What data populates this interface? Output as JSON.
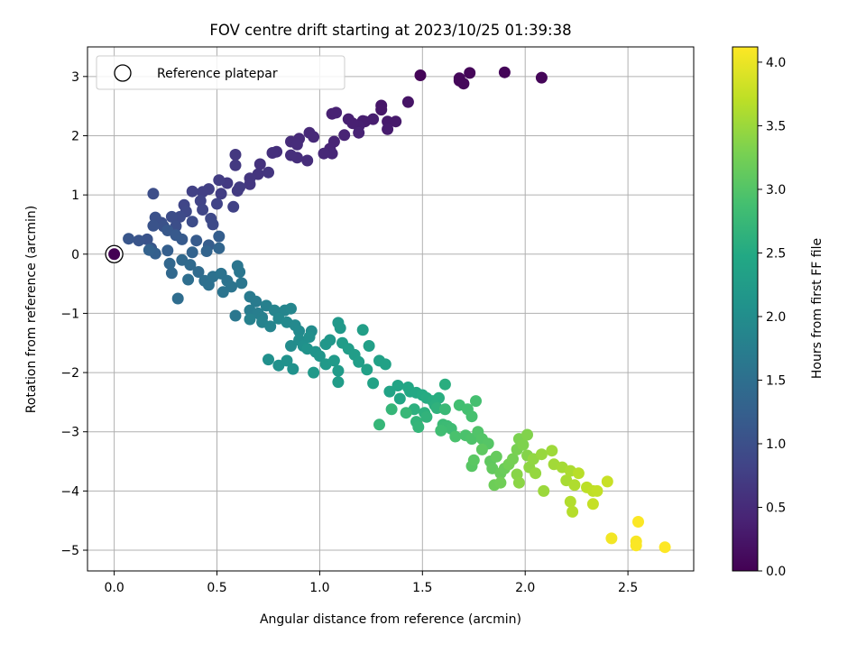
{
  "chart_data": {
    "type": "scatter",
    "title": "FOV centre drift starting at 2023/10/25 01:39:38",
    "xlabel": "Angular distance from reference (arcmin)",
    "ylabel": "Rotation from reference (arcmin)",
    "xlim": [
      -0.13,
      2.82
    ],
    "ylim": [
      -5.35,
      3.5
    ],
    "xticks": [
      0.0,
      0.5,
      1.0,
      1.5,
      2.0,
      2.5
    ],
    "xtick_labels": [
      "0.0",
      "0.5",
      "1.0",
      "1.5",
      "2.0",
      "2.5"
    ],
    "yticks": [
      3,
      2,
      1,
      0,
      -1,
      -2,
      -3,
      -4,
      -5
    ],
    "ytick_labels": [
      "3",
      "2",
      "1",
      "0",
      "−1",
      "−2",
      "−3",
      "−4",
      "−5"
    ],
    "grid": true,
    "legend": {
      "placement": "upper-left",
      "entries": [
        "Reference platepar"
      ]
    },
    "reference_point": {
      "x": 0.0,
      "y": 0.0
    },
    "colorbar": {
      "label": "Hours from first FF file",
      "colormap": "viridis",
      "range": [
        0.0,
        4.12
      ],
      "ticks": [
        0.0,
        0.5,
        1.0,
        1.5,
        2.0,
        2.5,
        3.0,
        3.5,
        4.0
      ],
      "tick_labels": [
        "0.0",
        "0.5",
        "1.0",
        "1.5",
        "2.0",
        "2.5",
        "3.0",
        "3.5",
        "4.0"
      ]
    },
    "series": [
      {
        "points": [
          [
            1.49,
            3.02,
            0.05
          ],
          [
            1.73,
            3.06,
            0.06
          ],
          [
            1.9,
            3.07,
            0.05
          ],
          [
            2.08,
            2.98,
            0.06
          ],
          [
            1.68,
            2.93,
            0.07
          ],
          [
            1.68,
            2.97,
            0.08
          ],
          [
            1.7,
            2.88,
            0.08
          ],
          [
            1.43,
            2.57,
            0.22
          ],
          [
            1.3,
            2.51,
            0.25
          ],
          [
            1.3,
            2.44,
            0.26
          ],
          [
            1.33,
            2.24,
            0.3
          ],
          [
            1.37,
            2.24,
            0.29
          ],
          [
            1.33,
            2.11,
            0.32
          ],
          [
            1.22,
            2.24,
            0.33
          ],
          [
            1.21,
            2.25,
            0.34
          ],
          [
            1.26,
            2.28,
            0.34
          ],
          [
            1.14,
            2.28,
            0.36
          ],
          [
            1.19,
            2.16,
            0.36
          ],
          [
            1.16,
            2.21,
            0.37
          ],
          [
            1.06,
            2.37,
            0.38
          ],
          [
            1.08,
            2.39,
            0.39
          ],
          [
            1.19,
            2.05,
            0.4
          ],
          [
            1.12,
            2.01,
            0.41
          ],
          [
            1.07,
            1.9,
            0.42
          ],
          [
            1.05,
            1.78,
            0.43
          ],
          [
            1.06,
            1.7,
            0.45
          ],
          [
            1.02,
            1.7,
            0.46
          ],
          [
            0.95,
            2.05,
            0.48
          ],
          [
            0.97,
            1.98,
            0.49
          ],
          [
            0.9,
            1.95,
            0.5
          ],
          [
            0.86,
            1.9,
            0.51
          ],
          [
            0.89,
            1.85,
            0.52
          ],
          [
            0.94,
            1.58,
            0.53
          ],
          [
            0.89,
            1.63,
            0.54
          ],
          [
            0.86,
            1.67,
            0.55
          ],
          [
            0.79,
            1.73,
            0.56
          ],
          [
            0.77,
            1.71,
            0.57
          ],
          [
            0.71,
            1.52,
            0.6
          ],
          [
            0.7,
            1.35,
            0.62
          ],
          [
            0.75,
            1.38,
            0.63
          ],
          [
            0.66,
            1.28,
            0.65
          ],
          [
            0.66,
            1.18,
            0.66
          ],
          [
            0.59,
            1.68,
            0.67
          ],
          [
            0.59,
            1.5,
            0.68
          ],
          [
            0.55,
            1.2,
            0.7
          ],
          [
            0.6,
            1.07,
            0.71
          ],
          [
            0.61,
            1.13,
            0.72
          ],
          [
            0.51,
            1.25,
            0.73
          ],
          [
            0.52,
            1.02,
            0.74
          ],
          [
            0.46,
            1.1,
            0.76
          ],
          [
            0.43,
            1.05,
            0.77
          ],
          [
            0.38,
            1.06,
            0.78
          ],
          [
            0.58,
            0.8,
            0.8
          ],
          [
            0.5,
            0.85,
            0.82
          ],
          [
            0.42,
            0.9,
            0.83
          ],
          [
            0.43,
            0.75,
            0.85
          ],
          [
            0.34,
            0.83,
            0.86
          ],
          [
            0.35,
            0.72,
            0.88
          ],
          [
            0.47,
            0.6,
            0.9
          ],
          [
            0.48,
            0.5,
            0.92
          ],
          [
            0.32,
            0.63,
            0.93
          ],
          [
            0.38,
            0.55,
            0.95
          ],
          [
            0.28,
            0.63,
            0.96
          ],
          [
            0.19,
            1.02,
            0.97
          ],
          [
            0.3,
            0.47,
            0.98
          ],
          [
            0.23,
            0.53,
            1.0
          ],
          [
            0.2,
            0.62,
            1.02
          ],
          [
            0.24,
            0.47,
            1.03
          ],
          [
            0.19,
            0.48,
            1.05
          ],
          [
            0.16,
            0.25,
            1.06
          ],
          [
            0.12,
            0.23,
            1.08
          ],
          [
            0.07,
            0.26,
            1.1
          ],
          [
            0.18,
            0.1,
            1.11
          ],
          [
            0.26,
            0.4,
            1.13
          ],
          [
            0.3,
            0.32,
            1.14
          ],
          [
            0.33,
            0.25,
            1.16
          ],
          [
            0.4,
            0.23,
            1.18
          ],
          [
            0.46,
            0.15,
            1.2
          ],
          [
            0.51,
            0.3,
            1.22
          ],
          [
            0.26,
            0.06,
            1.24
          ],
          [
            0.2,
            0.01,
            1.26
          ],
          [
            0.17,
            0.07,
            1.28
          ],
          [
            0.38,
            0.03,
            1.3
          ],
          [
            0.45,
            0.05,
            1.32
          ],
          [
            0.51,
            0.1,
            1.34
          ],
          [
            0.27,
            -0.16,
            1.36
          ],
          [
            0.28,
            -0.32,
            1.38
          ],
          [
            0.33,
            -0.1,
            1.4
          ],
          [
            0.37,
            -0.18,
            1.42
          ],
          [
            0.41,
            -0.3,
            1.44
          ],
          [
            0.31,
            -0.75,
            1.46
          ],
          [
            0.36,
            -0.43,
            1.48
          ],
          [
            0.44,
            -0.45,
            1.5
          ],
          [
            0.46,
            -0.52,
            1.52
          ],
          [
            0.48,
            -0.38,
            1.54
          ],
          [
            0.52,
            -0.33,
            1.56
          ],
          [
            0.55,
            -0.45,
            1.57
          ],
          [
            0.53,
            -0.64,
            1.58
          ],
          [
            0.57,
            -0.55,
            1.59
          ],
          [
            0.6,
            -0.2,
            1.6
          ],
          [
            0.61,
            -0.3,
            1.61
          ],
          [
            0.62,
            -0.49,
            1.62
          ],
          [
            0.59,
            -1.04,
            1.63
          ],
          [
            0.66,
            -0.72,
            1.68
          ],
          [
            0.69,
            -0.8,
            1.7
          ],
          [
            0.66,
            -0.95,
            1.72
          ],
          [
            0.7,
            -1.0,
            1.74
          ],
          [
            0.72,
            -1.07,
            1.76
          ],
          [
            0.74,
            -0.87,
            1.78
          ],
          [
            0.66,
            -1.1,
            1.8
          ],
          [
            0.72,
            -1.15,
            1.82
          ],
          [
            0.76,
            -1.22,
            1.84
          ],
          [
            0.78,
            -0.95,
            1.85
          ],
          [
            0.83,
            -0.95,
            1.86
          ],
          [
            0.86,
            -0.92,
            1.88
          ],
          [
            0.8,
            -1.09,
            1.9
          ],
          [
            0.84,
            -1.15,
            1.92
          ],
          [
            0.88,
            -1.2,
            1.93
          ],
          [
            0.9,
            -1.3,
            1.95
          ],
          [
            0.96,
            -1.3,
            1.97
          ],
          [
            0.86,
            -1.55,
            1.98
          ],
          [
            0.9,
            -1.45,
            2.0
          ],
          [
            0.95,
            -1.4,
            2.02
          ],
          [
            0.92,
            -1.55,
            2.04
          ],
          [
            0.75,
            -1.78,
            2.05
          ],
          [
            0.8,
            -1.88,
            2.06
          ],
          [
            0.84,
            -1.8,
            2.07
          ],
          [
            0.87,
            -1.94,
            2.08
          ],
          [
            0.94,
            -1.6,
            2.1
          ],
          [
            0.98,
            -1.65,
            2.12
          ],
          [
            1.0,
            -1.72,
            2.14
          ],
          [
            1.03,
            -1.52,
            2.16
          ],
          [
            1.05,
            -1.45,
            2.17
          ],
          [
            1.09,
            -1.16,
            2.18
          ],
          [
            1.1,
            -1.25,
            2.19
          ],
          [
            0.97,
            -2.0,
            2.2
          ],
          [
            1.03,
            -1.86,
            2.21
          ],
          [
            1.07,
            -1.8,
            2.22
          ],
          [
            1.09,
            -1.97,
            2.24
          ],
          [
            1.09,
            -2.16,
            2.25
          ],
          [
            1.11,
            -1.5,
            2.26
          ],
          [
            1.14,
            -1.6,
            2.27
          ],
          [
            1.17,
            -1.7,
            2.28
          ],
          [
            1.19,
            -1.82,
            2.29
          ],
          [
            1.21,
            -1.28,
            2.3
          ],
          [
            1.24,
            -1.55,
            2.31
          ],
          [
            1.23,
            -1.95,
            2.32
          ],
          [
            1.29,
            -1.8,
            2.34
          ],
          [
            1.32,
            -1.86,
            2.35
          ],
          [
            1.26,
            -2.18,
            2.36
          ],
          [
            1.34,
            -2.32,
            2.38
          ],
          [
            1.38,
            -2.22,
            2.4
          ],
          [
            1.39,
            -2.44,
            2.42
          ],
          [
            1.43,
            -2.25,
            2.44
          ],
          [
            1.44,
            -2.32,
            2.46
          ],
          [
            1.47,
            -2.34,
            2.48
          ],
          [
            1.5,
            -2.38,
            2.5
          ],
          [
            1.52,
            -2.43,
            2.52
          ],
          [
            1.55,
            -2.48,
            2.54
          ],
          [
            1.58,
            -2.43,
            2.56
          ],
          [
            1.61,
            -2.2,
            2.57
          ],
          [
            1.56,
            -2.55,
            2.58
          ],
          [
            1.46,
            -2.62,
            2.6
          ],
          [
            1.51,
            -2.68,
            2.62
          ],
          [
            1.57,
            -2.6,
            2.64
          ],
          [
            1.52,
            -2.75,
            2.66
          ],
          [
            1.47,
            -2.83,
            2.68
          ],
          [
            1.48,
            -2.92,
            2.7
          ],
          [
            1.35,
            -2.62,
            2.71
          ],
          [
            1.29,
            -2.88,
            2.72
          ],
          [
            1.42,
            -2.68,
            2.74
          ],
          [
            1.61,
            -2.62,
            2.76
          ],
          [
            1.6,
            -2.88,
            2.78
          ],
          [
            1.62,
            -2.9,
            2.8
          ],
          [
            1.64,
            -2.95,
            2.82
          ],
          [
            1.59,
            -2.98,
            2.84
          ],
          [
            1.68,
            -2.55,
            2.86
          ],
          [
            1.72,
            -2.62,
            2.88
          ],
          [
            1.76,
            -2.48,
            2.89
          ],
          [
            1.74,
            -2.74,
            2.9
          ],
          [
            1.66,
            -3.08,
            2.92
          ],
          [
            1.71,
            -3.06,
            2.94
          ],
          [
            1.74,
            -3.12,
            2.96
          ],
          [
            1.77,
            -3.0,
            2.98
          ],
          [
            1.79,
            -3.12,
            3.0
          ],
          [
            1.82,
            -3.2,
            3.02
          ],
          [
            1.74,
            -3.58,
            3.04
          ],
          [
            1.75,
            -3.48,
            3.06
          ],
          [
            1.79,
            -3.3,
            3.08
          ],
          [
            1.83,
            -3.5,
            3.1
          ],
          [
            1.84,
            -3.62,
            3.12
          ],
          [
            1.86,
            -3.42,
            3.14
          ],
          [
            1.88,
            -3.7,
            3.16
          ],
          [
            1.9,
            -3.62,
            3.18
          ],
          [
            1.85,
            -3.9,
            3.2
          ],
          [
            1.88,
            -3.86,
            3.22
          ],
          [
            1.92,
            -3.55,
            3.24
          ],
          [
            1.94,
            -3.46,
            3.26
          ],
          [
            1.96,
            -3.3,
            3.28
          ],
          [
            1.97,
            -3.12,
            3.3
          ],
          [
            1.99,
            -3.22,
            3.32
          ],
          [
            2.01,
            -3.05,
            3.34
          ],
          [
            2.01,
            -3.4,
            3.36
          ],
          [
            1.96,
            -3.72,
            3.38
          ],
          [
            1.97,
            -3.86,
            3.4
          ],
          [
            2.02,
            -3.6,
            3.42
          ],
          [
            2.04,
            -3.46,
            3.44
          ],
          [
            2.05,
            -3.7,
            3.46
          ],
          [
            2.08,
            -3.38,
            3.48
          ],
          [
            2.09,
            -4.0,
            3.5
          ],
          [
            2.13,
            -3.32,
            3.52
          ],
          [
            2.14,
            -3.55,
            3.54
          ],
          [
            2.18,
            -3.6,
            3.56
          ],
          [
            2.2,
            -3.82,
            3.58
          ],
          [
            2.22,
            -3.66,
            3.6
          ],
          [
            2.24,
            -3.9,
            3.62
          ],
          [
            2.22,
            -4.18,
            3.64
          ],
          [
            2.23,
            -4.35,
            3.66
          ],
          [
            2.26,
            -3.7,
            3.68
          ],
          [
            2.3,
            -3.94,
            3.7
          ],
          [
            2.33,
            -4.0,
            3.72
          ],
          [
            2.35,
            -4.0,
            3.74
          ],
          [
            2.33,
            -4.22,
            3.76
          ],
          [
            2.4,
            -3.84,
            3.78
          ],
          [
            2.42,
            -4.8,
            4.05
          ],
          [
            2.54,
            -4.85,
            4.08
          ],
          [
            2.54,
            -4.92,
            4.1
          ],
          [
            2.55,
            -4.52,
            4.11
          ],
          [
            2.68,
            -4.95,
            4.12
          ]
        ]
      }
    ]
  }
}
